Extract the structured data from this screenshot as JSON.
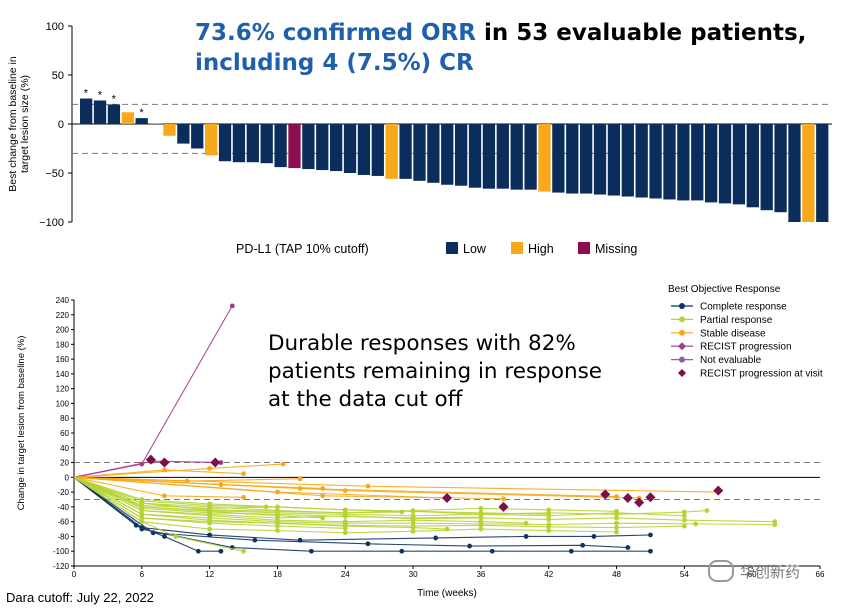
{
  "headline": {
    "line1_blue": "73.6% confirmed ORR",
    "line1_black": " in 53 evaluable patients,",
    "line2_blue": "including 4 (7.5%) CR"
  },
  "annotation": "Durable responses with 82% patients remaining in response at the data cut off",
  "footer": "Dara cutoff: July 22, 2022",
  "watermark": "华创新药",
  "colors": {
    "Low": "#0b2d5b",
    "High": "#f7a81b",
    "Missing": "#8b0f4f",
    "Complete response": "#0f3460",
    "Partial response": "#b5d334",
    "Stable disease": "#f7a81b",
    "RECIST progression": "#a33a8f",
    "Not evaluable": "#8a5fb0",
    "RECIST progression at visit": "#7a0f4a"
  },
  "chart_data": [
    {
      "type": "bar",
      "ylabel": "Best change from baseline in target lesion size (%)",
      "ylim": [
        -100,
        100
      ],
      "yticks": [
        -100,
        -50,
        0,
        50,
        100
      ],
      "reference_lines": [
        20,
        -30
      ],
      "legend_title": "PD-L1 (TAP 10% cutoff)",
      "legend_entries": [
        "Low",
        "High",
        "Missing"
      ],
      "legend_placement": "bottom",
      "values": [
        26,
        24,
        20,
        12,
        6,
        1,
        -12,
        -20,
        -25,
        -32,
        -38,
        -39,
        -39,
        -40,
        -44,
        -45,
        -46,
        -47,
        -48,
        -50,
        -52,
        -53,
        -56,
        -56,
        -58,
        -60,
        -62,
        -63,
        -65,
        -66,
        -66,
        -67,
        -67,
        -69,
        -70,
        -71,
        -71,
        -72,
        -73,
        -74,
        -75,
        -76,
        -77,
        -78,
        -78,
        -80,
        -81,
        -82,
        -85,
        -88,
        -90,
        -100,
        -100,
        -100
      ],
      "groups": [
        "Low",
        "Low",
        "Low",
        "High",
        "Low",
        "High",
        "High",
        "Low",
        "Low",
        "High",
        "Low",
        "Low",
        "Low",
        "Low",
        "Low",
        "Missing",
        "Low",
        "Low",
        "Low",
        "Low",
        "Low",
        "Low",
        "High",
        "Low",
        "Low",
        "Low",
        "Low",
        "Low",
        "Low",
        "Low",
        "Low",
        "Low",
        "Low",
        "High",
        "Low",
        "Low",
        "Low",
        "Low",
        "Low",
        "Low",
        "Low",
        "Low",
        "Low",
        "Low",
        "Low",
        "Low",
        "Low",
        "Low",
        "Low",
        "Low",
        "Low",
        "Low",
        "High",
        "Low"
      ],
      "asterisk_bars": [
        0,
        1,
        2,
        4
      ]
    },
    {
      "type": "line",
      "xlabel": "Time (weeks)",
      "ylabel": "Change in target lesion from baseline (%)",
      "xlim": [
        0,
        66
      ],
      "ylim": [
        -120,
        240
      ],
      "xticks": [
        0,
        6,
        12,
        18,
        24,
        30,
        36,
        42,
        48,
        54,
        60,
        66
      ],
      "yticks": [
        -120,
        -100,
        -80,
        -60,
        -40,
        -20,
        0,
        20,
        40,
        60,
        80,
        100,
        120,
        140,
        160,
        180,
        200,
        220,
        240
      ],
      "reference_lines": [
        20,
        -30
      ],
      "legend_title": "Best Objective Response",
      "legend_placement": "top-right",
      "legend_entries": [
        "Complete response",
        "Partial response",
        "Stable disease",
        "RECIST progression",
        "Not evaluable",
        "RECIST progression at visit"
      ],
      "series": [
        {
          "name": "RECIST progression",
          "x": [
            0,
            6,
            14
          ],
          "y": [
            0,
            18,
            232
          ]
        },
        {
          "name": "RECIST progression",
          "x": [
            0,
            7,
            13
          ],
          "y": [
            0,
            22,
            20
          ]
        },
        {
          "name": "Stable disease",
          "x": [
            0,
            8,
            15
          ],
          "y": [
            0,
            10,
            5
          ]
        },
        {
          "name": "Stable disease",
          "x": [
            0,
            12,
            18.5
          ],
          "y": [
            0,
            12,
            18
          ]
        },
        {
          "name": "Stable disease",
          "x": [
            0,
            10,
            20
          ],
          "y": [
            0,
            -5,
            -2
          ]
        },
        {
          "name": "Stable disease",
          "x": [
            0,
            13,
            22
          ],
          "y": [
            0,
            -10,
            -15
          ]
        },
        {
          "name": "Stable disease",
          "x": [
            0,
            18,
            33
          ],
          "y": [
            0,
            -20,
            -28
          ]
        },
        {
          "name": "Stable disease",
          "x": [
            0,
            22,
            38
          ],
          "y": [
            0,
            -25,
            -29
          ]
        },
        {
          "name": "Stable disease",
          "x": [
            0,
            20,
            48
          ],
          "y": [
            0,
            -15,
            -26
          ]
        },
        {
          "name": "Stable disease",
          "x": [
            0,
            24,
            50
          ],
          "y": [
            0,
            -18,
            -28
          ]
        },
        {
          "name": "Stable disease",
          "x": [
            0,
            26,
            57
          ],
          "y": [
            0,
            -12,
            -20
          ]
        },
        {
          "name": "Stable disease",
          "x": [
            0,
            8,
            15
          ],
          "y": [
            0,
            -25,
            -27
          ]
        },
        {
          "name": "Complete response",
          "x": [
            0,
            5.5,
            8,
            11,
            13
          ],
          "y": [
            0,
            -65,
            -80,
            -100,
            -100
          ]
        },
        {
          "name": "Complete response",
          "x": [
            0,
            6,
            14,
            21,
            29,
            37,
            44,
            51
          ],
          "y": [
            0,
            -70,
            -95,
            -100,
            -100,
            -100,
            -100,
            -100
          ]
        },
        {
          "name": "Complete response",
          "x": [
            0,
            7,
            16,
            26,
            35,
            45,
            49
          ],
          "y": [
            0,
            -75,
            -85,
            -90,
            -93,
            -92,
            -95
          ]
        },
        {
          "name": "Complete response",
          "x": [
            0,
            6,
            12,
            20,
            32,
            40,
            46,
            51
          ],
          "y": [
            0,
            -68,
            -78,
            -85,
            -82,
            -80,
            -80,
            -78
          ]
        },
        {
          "name": "Partial response",
          "x": [
            0,
            6,
            12,
            18,
            24,
            30,
            36,
            42,
            48,
            54,
            62
          ],
          "y": [
            0,
            -45,
            -50,
            -55,
            -52,
            -56,
            -55,
            -57,
            -55,
            -58,
            -60
          ]
        },
        {
          "name": "Partial response",
          "x": [
            0,
            6,
            12,
            18,
            24,
            30,
            36,
            42,
            48,
            55,
            62
          ],
          "y": [
            0,
            -50,
            -55,
            -60,
            -62,
            -62,
            -63,
            -64,
            -62,
            -63,
            -64
          ]
        },
        {
          "name": "Partial response",
          "x": [
            0,
            6,
            12,
            18,
            24,
            30,
            36,
            42,
            48,
            54,
            56
          ],
          "y": [
            0,
            -40,
            -45,
            -48,
            -50,
            -52,
            -50,
            -48,
            -50,
            -47,
            -45
          ]
        },
        {
          "name": "Partial response",
          "x": [
            0,
            6,
            12,
            18,
            24,
            30,
            36,
            42,
            48,
            54
          ],
          "y": [
            0,
            -55,
            -60,
            -62,
            -65,
            -66,
            -65,
            -67,
            -68,
            -66
          ]
        },
        {
          "name": "Partial response",
          "x": [
            0,
            6,
            12,
            18,
            24,
            30,
            36,
            42,
            48
          ],
          "y": [
            0,
            -35,
            -40,
            -45,
            -48,
            -45,
            -42,
            -44,
            -46
          ]
        },
        {
          "name": "Partial response",
          "x": [
            0,
            6,
            12,
            18,
            24,
            30,
            36,
            42,
            48
          ],
          "y": [
            0,
            -60,
            -70,
            -72,
            -75,
            -73,
            -70,
            -72,
            -74
          ]
        },
        {
          "name": "Partial response",
          "x": [
            0,
            6,
            12,
            18,
            24,
            30,
            36,
            42
          ],
          "y": [
            0,
            -38,
            -42,
            -40,
            -44,
            -46,
            -48,
            -50
          ]
        },
        {
          "name": "Partial response",
          "x": [
            0,
            6,
            12,
            18,
            24,
            30,
            36,
            40
          ],
          "y": [
            0,
            -45,
            -52,
            -58,
            -60,
            -58,
            -60,
            -62
          ]
        },
        {
          "name": "Partial response",
          "x": [
            0,
            6,
            12,
            18,
            24,
            30,
            36
          ],
          "y": [
            0,
            -42,
            -48,
            -50,
            -53,
            -55,
            -54
          ]
        },
        {
          "name": "Partial response",
          "x": [
            0,
            6,
            12,
            18,
            24,
            30,
            33
          ],
          "y": [
            0,
            -50,
            -58,
            -62,
            -66,
            -68,
            -70
          ]
        },
        {
          "name": "Partial response",
          "x": [
            0,
            6,
            12,
            18,
            24,
            29
          ],
          "y": [
            0,
            -35,
            -44,
            -46,
            -48,
            -47
          ]
        },
        {
          "name": "Partial response",
          "x": [
            0,
            6,
            12,
            18,
            24
          ],
          "y": [
            0,
            -55,
            -62,
            -66,
            -69
          ]
        },
        {
          "name": "Partial response",
          "x": [
            0,
            6,
            12,
            18,
            22
          ],
          "y": [
            0,
            -40,
            -46,
            -52,
            -55
          ]
        },
        {
          "name": "Partial response",
          "x": [
            0,
            6,
            12,
            17
          ],
          "y": [
            0,
            -32,
            -38,
            -40
          ]
        },
        {
          "name": "Partial response",
          "x": [
            0,
            6,
            12,
            18,
            24,
            30,
            36,
            42,
            48,
            54
          ],
          "y": [
            0,
            -30,
            -36,
            -40,
            -44,
            -46,
            -50,
            -52,
            -48,
            -52
          ]
        },
        {
          "name": "Partial response",
          "x": [
            0,
            6,
            9,
            15
          ],
          "y": [
            0,
            -60,
            -80,
            -100
          ]
        }
      ],
      "progression_markers": {
        "x": [
          6.8,
          8,
          12.5,
          33,
          38,
          47,
          49,
          50,
          51,
          57
        ],
        "y": [
          24,
          20,
          20,
          -28,
          -40,
          -23,
          -28,
          -34,
          -27,
          -18
        ]
      }
    }
  ]
}
